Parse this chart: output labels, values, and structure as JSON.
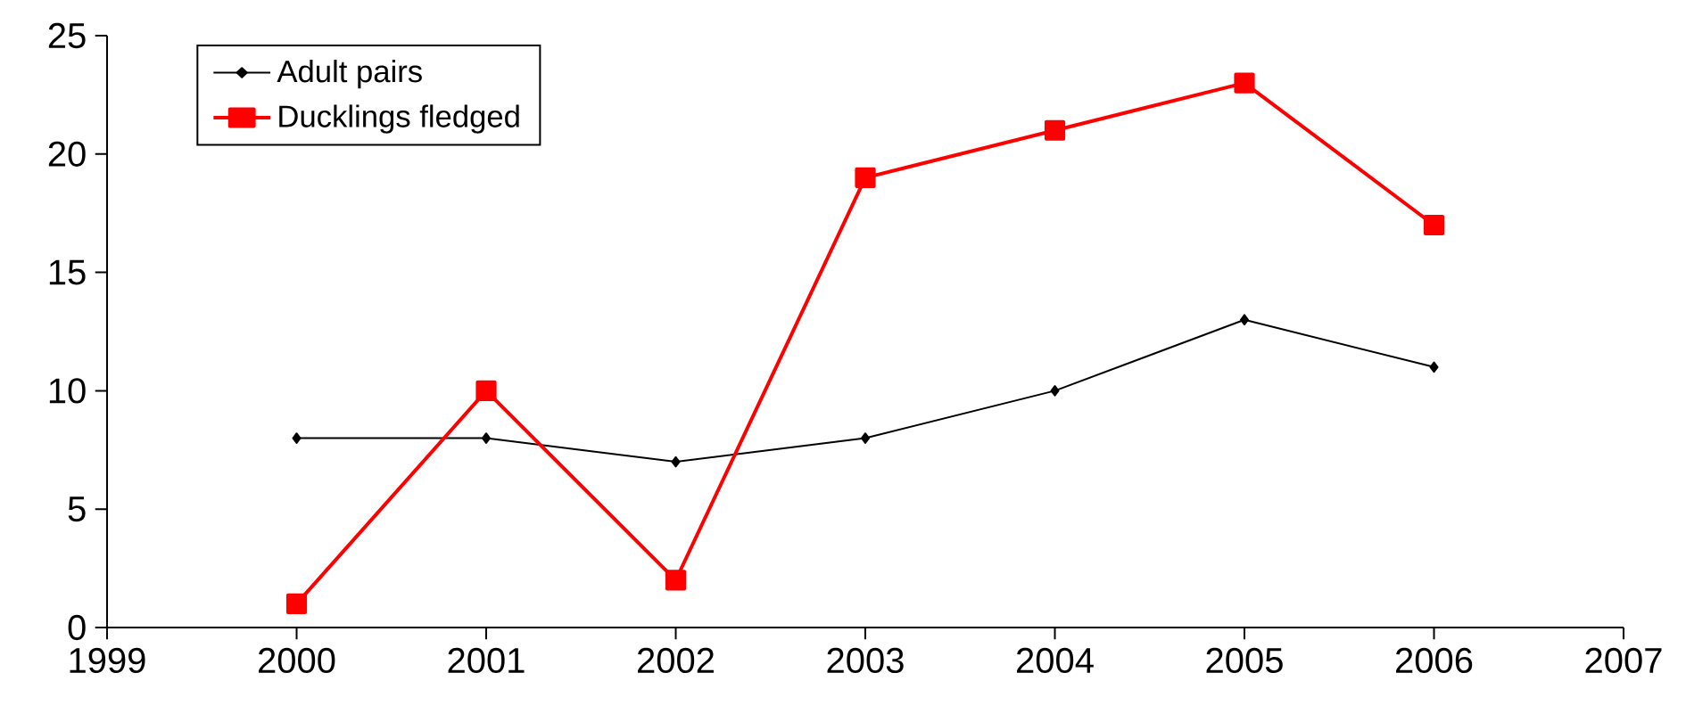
{
  "chart_data": {
    "type": "line",
    "x": [
      2000,
      2001,
      2002,
      2003,
      2004,
      2005,
      2006
    ],
    "series": [
      {
        "name": "Adult pairs",
        "color": "#000000",
        "marker": "diamond",
        "values": [
          8,
          8,
          7,
          8,
          10,
          13,
          11
        ]
      },
      {
        "name": "Ducklings fledged",
        "color": "#ff0000",
        "marker": "square",
        "values": [
          1,
          10,
          2,
          19,
          21,
          23,
          17
        ]
      }
    ],
    "xlim": [
      1999,
      2007
    ],
    "xticks": [
      1999,
      2000,
      2001,
      2002,
      2003,
      2004,
      2005,
      2006,
      2007
    ],
    "ylim": [
      0,
      25
    ],
    "yticks": [
      0,
      5,
      10,
      15,
      20,
      25
    ],
    "grid": false,
    "legend": "top left",
    "line_style": "solid"
  }
}
